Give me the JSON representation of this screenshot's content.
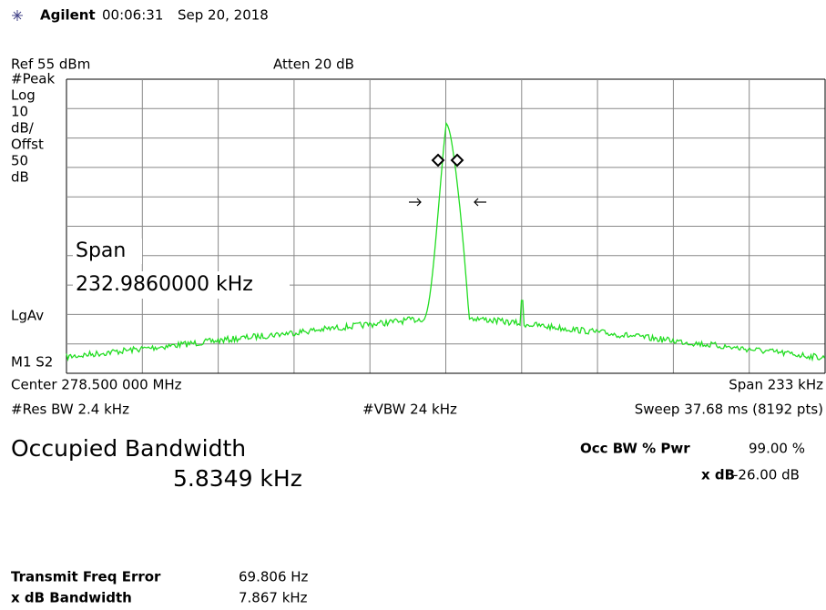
{
  "header": {
    "brand": "Agilent",
    "time": "00:06:31",
    "date": "Sep 20, 2018"
  },
  "display": {
    "ref": "Ref 55 dBm",
    "atten": "Atten 20 dB",
    "left_labels": [
      "#Peak",
      "Log",
      "10",
      "dB/",
      "Offst",
      "50",
      "dB"
    ],
    "detector": "LgAv",
    "marker_status": "M1  S2",
    "span_overlay": {
      "label": "Span",
      "value": "232.9860000 kHz"
    },
    "center": "Center 278.500 000 MHz",
    "span": "Span 233 kHz",
    "res_bw": "#Res BW 2.4 kHz",
    "vbw": "#VBW 24 kHz",
    "sweep": "Sweep 37.68 ms (8192 pts)"
  },
  "results": {
    "title": "Occupied Bandwidth",
    "value": "5.8349 kHz",
    "occ_bw_label": "Occ BW % Pwr",
    "occ_bw_value": "99.00 %",
    "xdb_label": "x dB",
    "xdb_value": "-26.00 dB",
    "rows": [
      [
        "Transmit Freq Error",
        "69.806 Hz"
      ],
      [
        "x dB Bandwidth",
        "7.867 kHz"
      ]
    ]
  }
}
